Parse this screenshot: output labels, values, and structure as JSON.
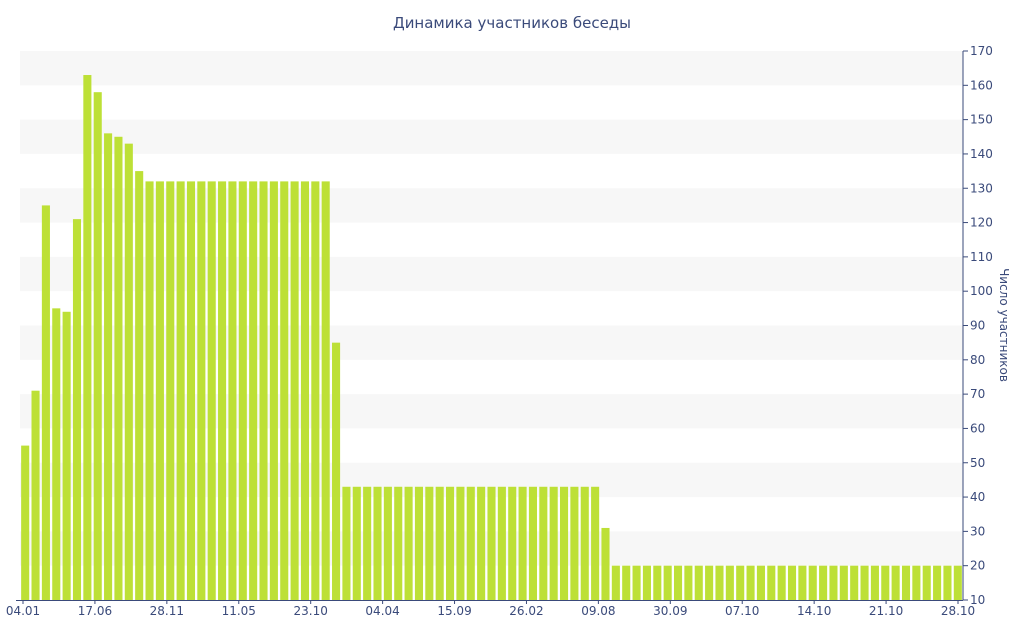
{
  "chart_data": {
    "type": "bar",
    "title": "Динамика участников беседы",
    "ylabel": "Число участников",
    "xlabel": "",
    "ylim": [
      10,
      170
    ],
    "yticks": [
      10,
      20,
      30,
      40,
      50,
      60,
      70,
      80,
      90,
      100,
      110,
      120,
      130,
      140,
      150,
      160,
      170
    ],
    "y_axis_side": "right",
    "grid": "alternating horizontal bands",
    "x_tick_labels": [
      "04.01",
      "17.06",
      "28.11",
      "11.05",
      "23.10",
      "04.04",
      "15.09",
      "26.02",
      "09.08",
      "30.09",
      "07.10",
      "14.10",
      "21.10",
      "28.10"
    ],
    "values": [
      55,
      71,
      125,
      95,
      94,
      121,
      163,
      158,
      146,
      145,
      143,
      135,
      132,
      132,
      132,
      132,
      132,
      132,
      132,
      132,
      132,
      132,
      132,
      132,
      132,
      132,
      132,
      132,
      132,
      132,
      85,
      43,
      43,
      43,
      43,
      43,
      43,
      43,
      43,
      43,
      43,
      43,
      43,
      43,
      43,
      43,
      43,
      43,
      43,
      43,
      43,
      43,
      43,
      43,
      43,
      43,
      31,
      20,
      20,
      20,
      20,
      20,
      20,
      20,
      20,
      20,
      20,
      20,
      20,
      20,
      20,
      20,
      20,
      20,
      20,
      20,
      20,
      20,
      20,
      20,
      20,
      20,
      20,
      20,
      20,
      20,
      20,
      20,
      20,
      20,
      20
    ],
    "colors": {
      "bar": "#bde036",
      "band": "#f7f7f7",
      "text": "#3a4a7a",
      "axis": "#3a4a7a"
    }
  }
}
